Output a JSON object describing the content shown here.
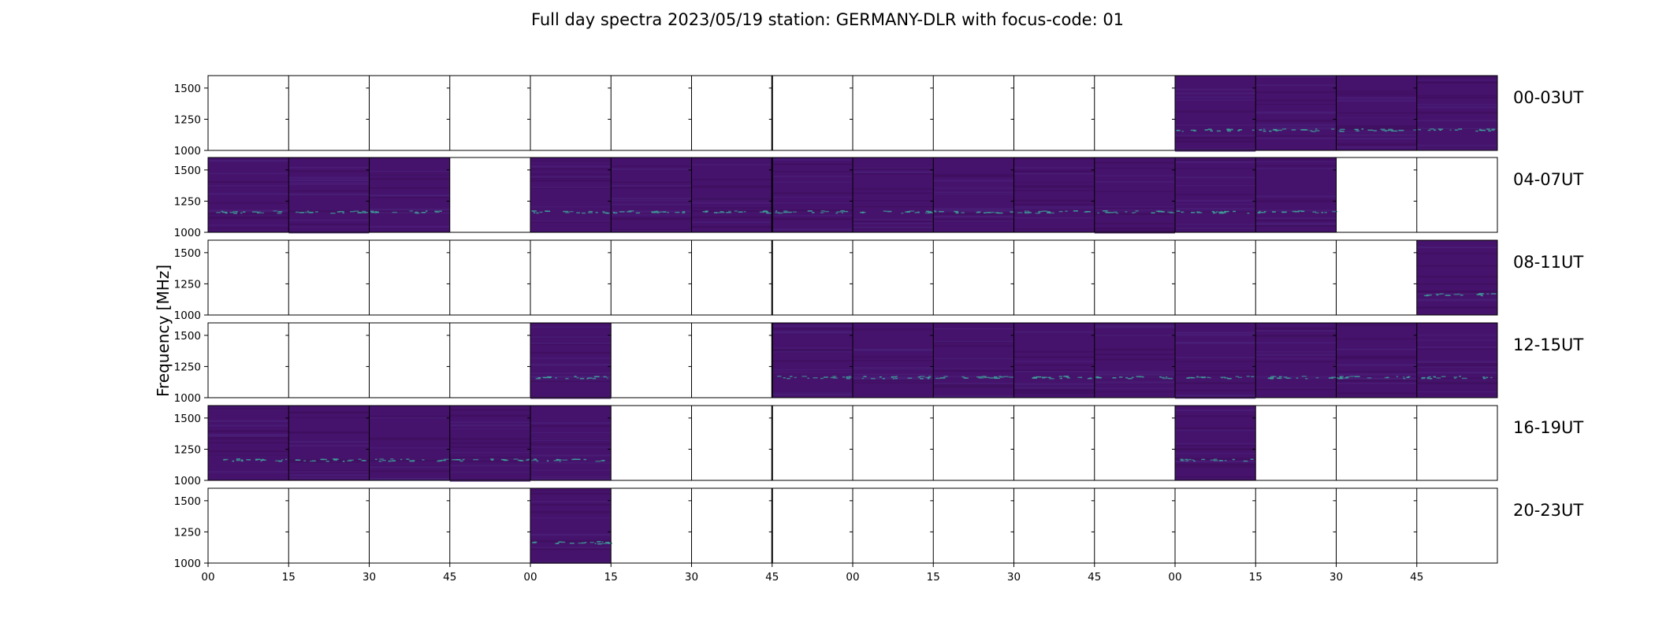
{
  "chart_data": {
    "type": "heatmap",
    "title": "Full day spectra 2023/05/19 station: GERMANY-DLR with focus-code: 01",
    "ylabel": "Frequency [MHz]",
    "xlabel": "",
    "ylim": [
      1000,
      1600
    ],
    "y_ticks": [
      "1000",
      "1250",
      "1500"
    ],
    "x_ticks": [
      "00",
      "15",
      "30",
      "45",
      "00",
      "15",
      "30",
      "45",
      "00",
      "15",
      "30",
      "45",
      "00",
      "15",
      "30",
      "45"
    ],
    "segment_minutes": 15,
    "colormap": "viridis",
    "colors": {
      "background": "#45136b",
      "background_light": "#4a1f78",
      "band_low": "#3f0f5f",
      "emission": "#3ea59a",
      "frame": "#000000"
    },
    "rows": [
      {
        "label": "00-03UT",
        "has_data": [
          0,
          0,
          0,
          0,
          0,
          0,
          0,
          0,
          0,
          0,
          0,
          0,
          1,
          1,
          1,
          1
        ]
      },
      {
        "label": "04-07UT",
        "has_data": [
          1,
          1,
          1,
          0,
          1,
          1,
          1,
          1,
          1,
          1,
          1,
          1,
          1,
          1,
          0,
          0
        ]
      },
      {
        "label": "08-11UT",
        "has_data": [
          0,
          0,
          0,
          0,
          0,
          0,
          0,
          0,
          0,
          0,
          0,
          0,
          0,
          0,
          0,
          1
        ]
      },
      {
        "label": "12-15UT",
        "has_data": [
          0,
          0,
          0,
          0,
          1,
          0,
          0,
          1,
          1,
          1,
          1,
          1,
          1,
          1,
          1,
          1
        ]
      },
      {
        "label": "16-19UT",
        "has_data": [
          1,
          1,
          1,
          1,
          1,
          0,
          0,
          0,
          0,
          0,
          0,
          0,
          1,
          0,
          0,
          0
        ]
      },
      {
        "label": "20-23UT",
        "has_data": [
          0,
          0,
          0,
          0,
          1,
          0,
          0,
          0,
          0,
          0,
          0,
          0,
          0,
          0,
          0,
          0
        ]
      }
    ],
    "emission_line_mhz": 1170,
    "grid": false,
    "legend": "none"
  }
}
